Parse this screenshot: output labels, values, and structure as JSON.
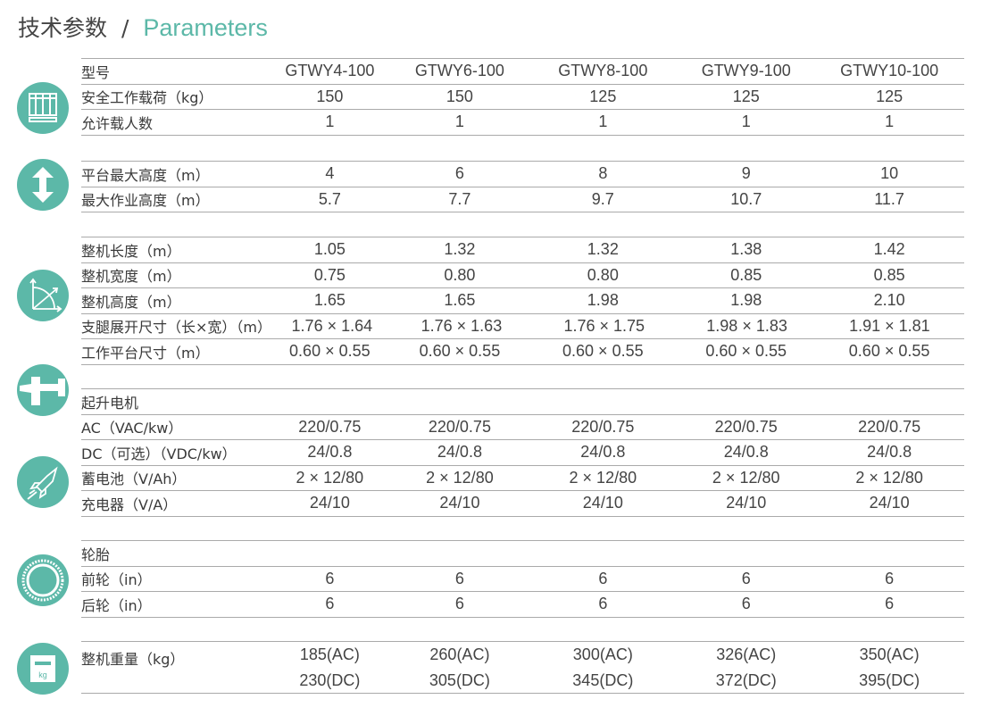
{
  "title": {
    "zh": "技术参数",
    "sep": "/",
    "en": "Parameters"
  },
  "colors": {
    "accent": "#5cb8a8",
    "text": "#3a3a3a",
    "rule": "#aaaaaa"
  },
  "icons": [
    "platform-cage-icon",
    "up-down-arrow-icon",
    "dimensions-axes-icon",
    "motor-plug-icon",
    "rocket-icon",
    "tire-icon",
    "weight-kg-icon"
  ],
  "groups": [
    {
      "rows": [
        {
          "label": "型号",
          "values": [
            "GTWY4-100",
            "GTWY6-100",
            "GTWY8-100",
            "GTWY9-100",
            "GTWY10-100"
          ]
        },
        {
          "label": "安全工作载荷（kg）",
          "values": [
            "150",
            "150",
            "125",
            "125",
            "125"
          ]
        },
        {
          "label": "允许载人数",
          "values": [
            "1",
            "1",
            "1",
            "1",
            "1"
          ]
        }
      ]
    },
    {
      "rows": [
        {
          "label": "平台最大高度（m）",
          "values": [
            "4",
            "6",
            "8",
            "9",
            "10"
          ]
        },
        {
          "label": "最大作业高度（m）",
          "values": [
            "5.7",
            "7.7",
            "9.7",
            "10.7",
            "11.7"
          ]
        }
      ]
    },
    {
      "rows": [
        {
          "label": "整机长度（m）",
          "values": [
            "1.05",
            "1.32",
            "1.32",
            "1.38",
            "1.42"
          ]
        },
        {
          "label": "整机宽度（m）",
          "values": [
            "0.75",
            "0.80",
            "0.80",
            "0.85",
            "0.85"
          ]
        },
        {
          "label": "整机高度（m）",
          "values": [
            "1.65",
            "1.65",
            "1.98",
            "1.98",
            "2.10"
          ]
        },
        {
          "label": "支腿展开尺寸（长×宽）（m）",
          "values": [
            "1.76 × 1.64",
            "1.76 × 1.63",
            "1.76 × 1.75",
            "1.98 × 1.83",
            "1.91 × 1.81"
          ]
        },
        {
          "label": "工作平台尺寸（m）",
          "values": [
            "0.60 × 0.55",
            "0.60 × 0.55",
            "0.60 × 0.55",
            "0.60 × 0.55",
            "0.60 × 0.55"
          ]
        }
      ]
    },
    {
      "rows": [
        {
          "label": "起升电机",
          "values": [
            "",
            "",
            "",
            "",
            ""
          ]
        },
        {
          "label": "AC（VAC/kw）",
          "values": [
            "220/0.75",
            "220/0.75",
            "220/0.75",
            "220/0.75",
            "220/0.75"
          ]
        },
        {
          "label": "DC（可选）（VDC/kw）",
          "values": [
            "24/0.8",
            "24/0.8",
            "24/0.8",
            "24/0.8",
            "24/0.8"
          ]
        },
        {
          "label": "蓄电池（V/Ah）",
          "values": [
            "2 × 12/80",
            "2 × 12/80",
            "2 × 12/80",
            "2 × 12/80",
            "2 × 12/80"
          ]
        },
        {
          "label": "充电器（V/A）",
          "values": [
            "24/10",
            "24/10",
            "24/10",
            "24/10",
            "24/10"
          ]
        }
      ]
    },
    {
      "rows": [
        {
          "label": "轮胎",
          "values": [
            "",
            "",
            "",
            "",
            ""
          ]
        },
        {
          "label": "前轮（in）",
          "values": [
            "6",
            "6",
            "6",
            "6",
            "6"
          ]
        },
        {
          "label": "后轮（in）",
          "values": [
            "6",
            "6",
            "6",
            "6",
            "6"
          ]
        }
      ]
    },
    {
      "rows": [
        {
          "label": "整机重量（kg）",
          "values": [
            [
              "185(AC)",
              "230(DC)"
            ],
            [
              "260(AC)",
              "305(DC)"
            ],
            [
              "300(AC)",
              "345(DC)"
            ],
            [
              "326(AC)",
              "372(DC)"
            ],
            [
              "350(AC)",
              "395(DC)"
            ]
          ]
        }
      ]
    }
  ]
}
